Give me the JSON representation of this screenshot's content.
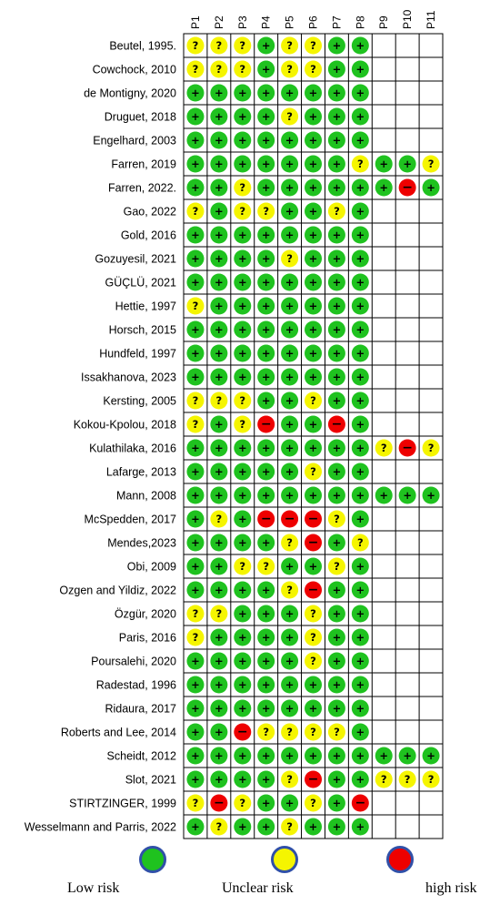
{
  "chart_data": {
    "type": "table",
    "title": "",
    "columns": [
      "P1",
      "P2",
      "P3",
      "P4",
      "P5",
      "P6",
      "P7",
      "P8",
      "P9",
      "P10",
      "P11"
    ],
    "rows": [
      {
        "study": "Beutel, 1995.",
        "ratings": [
          "unclear",
          "unclear",
          "unclear",
          "low",
          "unclear",
          "unclear",
          "low",
          "low",
          "",
          "",
          ""
        ]
      },
      {
        "study": "Cowchock, 2010",
        "ratings": [
          "unclear",
          "unclear",
          "unclear",
          "low",
          "unclear",
          "unclear",
          "low",
          "low",
          "",
          "",
          ""
        ]
      },
      {
        "study": "de Montigny, 2020",
        "ratings": [
          "low",
          "low",
          "low",
          "low",
          "low",
          "low",
          "low",
          "low",
          "",
          "",
          ""
        ]
      },
      {
        "study": "Druguet, 2018",
        "ratings": [
          "low",
          "low",
          "low",
          "low",
          "unclear",
          "low",
          "low",
          "low",
          "",
          "",
          ""
        ]
      },
      {
        "study": "Engelhard, 2003",
        "ratings": [
          "low",
          "low",
          "low",
          "low",
          "low",
          "low",
          "low",
          "low",
          "",
          "",
          ""
        ]
      },
      {
        "study": "Farren, 2019",
        "ratings": [
          "low",
          "low",
          "low",
          "low",
          "low",
          "low",
          "low",
          "unclear",
          "low",
          "low",
          "unclear"
        ]
      },
      {
        "study": "Farren, 2022.",
        "ratings": [
          "low",
          "low",
          "unclear",
          "low",
          "low",
          "low",
          "low",
          "low",
          "low",
          "high",
          "low"
        ]
      },
      {
        "study": "Gao, 2022",
        "ratings": [
          "unclear",
          "low",
          "unclear",
          "unclear",
          "low",
          "low",
          "unclear",
          "low",
          "",
          "",
          ""
        ]
      },
      {
        "study": "Gold, 2016",
        "ratings": [
          "low",
          "low",
          "low",
          "low",
          "low",
          "low",
          "low",
          "low",
          "",
          "",
          ""
        ]
      },
      {
        "study": "Gozuyesil, 2021",
        "ratings": [
          "low",
          "low",
          "low",
          "low",
          "unclear",
          "low",
          "low",
          "low",
          "",
          "",
          ""
        ]
      },
      {
        "study": "GÜÇLÜ,  2021",
        "ratings": [
          "low",
          "low",
          "low",
          "low",
          "low",
          "low",
          "low",
          "low",
          "",
          "",
          ""
        ]
      },
      {
        "study": "Hettie, 1997",
        "ratings": [
          "unclear",
          "low",
          "low",
          "low",
          "low",
          "low",
          "low",
          "low",
          "",
          "",
          ""
        ]
      },
      {
        "study": "Horsch, 2015",
        "ratings": [
          "low",
          "low",
          "low",
          "low",
          "low",
          "low",
          "low",
          "low",
          "",
          "",
          ""
        ]
      },
      {
        "study": "Hundfeld, 1997",
        "ratings": [
          "low",
          "low",
          "low",
          "low",
          "low",
          "low",
          "low",
          "low",
          "",
          "",
          ""
        ]
      },
      {
        "study": "Issakhanova, 2023",
        "ratings": [
          "low",
          "low",
          "low",
          "low",
          "low",
          "low",
          "low",
          "low",
          "",
          "",
          ""
        ]
      },
      {
        "study": "Kersting, 2005",
        "ratings": [
          "unclear",
          "unclear",
          "unclear",
          "low",
          "low",
          "unclear",
          "low",
          "low",
          "",
          "",
          ""
        ]
      },
      {
        "study": "Kokou-Kpolou, 2018",
        "ratings": [
          "unclear",
          "low",
          "unclear",
          "high",
          "low",
          "low",
          "high",
          "low",
          "",
          "",
          ""
        ]
      },
      {
        "study": "Kulathilaka, 2016",
        "ratings": [
          "low",
          "low",
          "low",
          "low",
          "low",
          "low",
          "low",
          "low",
          "unclear",
          "high",
          "unclear"
        ]
      },
      {
        "study": "Lafarge, 2013",
        "ratings": [
          "low",
          "low",
          "low",
          "low",
          "low",
          "unclear",
          "low",
          "low",
          "",
          "",
          ""
        ]
      },
      {
        "study": "Mann, 2008",
        "ratings": [
          "low",
          "low",
          "low",
          "low",
          "low",
          "low",
          "low",
          "low",
          "low",
          "low",
          "low"
        ]
      },
      {
        "study": "McSpedden, 2017",
        "ratings": [
          "low",
          "unclear",
          "low",
          "high",
          "high",
          "high",
          "unclear",
          "low",
          "",
          "",
          ""
        ]
      },
      {
        "study": "Mendes,2023",
        "ratings": [
          "low",
          "low",
          "low",
          "low",
          "unclear",
          "high",
          "low",
          "unclear",
          "",
          "",
          ""
        ]
      },
      {
        "study": "Obi, 2009",
        "ratings": [
          "low",
          "low",
          "unclear",
          "unclear",
          "low",
          "low",
          "unclear",
          "low",
          "",
          "",
          ""
        ]
      },
      {
        "study": "Ozgen and  Yildiz, 2022",
        "ratings": [
          "low",
          "low",
          "low",
          "low",
          "unclear",
          "high",
          "low",
          "low",
          "",
          "",
          ""
        ]
      },
      {
        "study": "Özgür, 2020",
        "ratings": [
          "unclear",
          "unclear",
          "low",
          "low",
          "low",
          "unclear",
          "low",
          "low",
          "",
          "",
          ""
        ]
      },
      {
        "study": "Paris, 2016",
        "ratings": [
          "unclear",
          "low",
          "low",
          "low",
          "low",
          "unclear",
          "low",
          "low",
          "",
          "",
          ""
        ]
      },
      {
        "study": "Poursalehi, 2020",
        "ratings": [
          "low",
          "low",
          "low",
          "low",
          "low",
          "unclear",
          "low",
          "low",
          "",
          "",
          ""
        ]
      },
      {
        "study": "Radestad, 1996",
        "ratings": [
          "low",
          "low",
          "low",
          "low",
          "low",
          "low",
          "low",
          "low",
          "",
          "",
          ""
        ]
      },
      {
        "study": "Ridaura, 2017",
        "ratings": [
          "low",
          "low",
          "low",
          "low",
          "low",
          "low",
          "low",
          "low",
          "",
          "",
          ""
        ]
      },
      {
        "study": "Roberts and Lee, 2014",
        "ratings": [
          "low",
          "low",
          "high",
          "unclear",
          "unclear",
          "unclear",
          "unclear",
          "low",
          "",
          "",
          ""
        ]
      },
      {
        "study": "Scheidt, 2012",
        "ratings": [
          "low",
          "low",
          "low",
          "low",
          "low",
          "low",
          "low",
          "low",
          "low",
          "low",
          "low"
        ]
      },
      {
        "study": "Slot, 2021",
        "ratings": [
          "low",
          "low",
          "low",
          "low",
          "unclear",
          "high",
          "low",
          "low",
          "unclear",
          "unclear",
          "unclear"
        ]
      },
      {
        "study": "STIRTZINGER, 1999",
        "ratings": [
          "unclear",
          "high",
          "unclear",
          "low",
          "low",
          "unclear",
          "low",
          "high",
          "",
          "",
          ""
        ]
      },
      {
        "study": "Wesselmann and Parris, 2022",
        "ratings": [
          "low",
          "unclear",
          "low",
          "low",
          "unclear",
          "low",
          "low",
          "low",
          "",
          "",
          ""
        ]
      }
    ],
    "symbols": {
      "low": "+",
      "unclear": "?",
      "high": "−"
    },
    "colors": {
      "low": "#1fc21f",
      "unclear": "#f5f500",
      "high": "#ee0000",
      "legend_border": "#3050a8"
    },
    "legend": [
      {
        "key": "low",
        "label": "Low risk"
      },
      {
        "key": "unclear",
        "label": "Unclear risk"
      },
      {
        "key": "high",
        "label": "high risk"
      }
    ]
  }
}
